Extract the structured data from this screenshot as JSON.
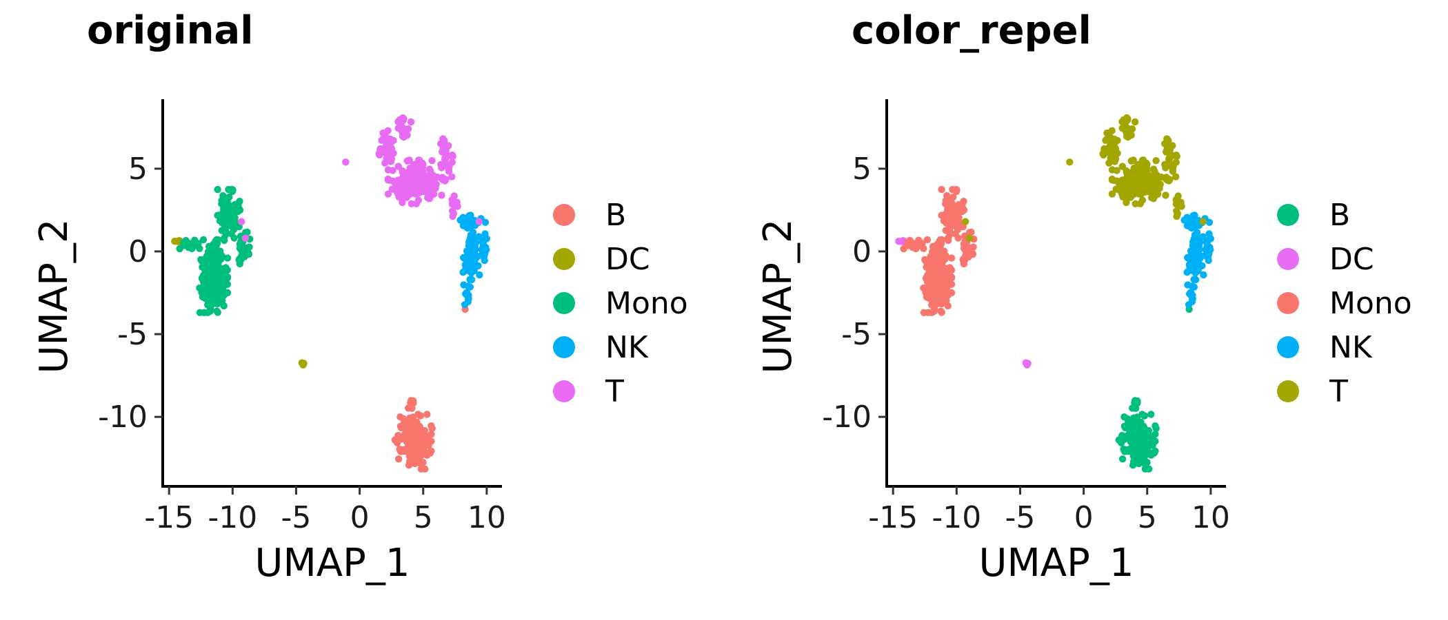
{
  "chart_data": [
    {
      "type": "scatter",
      "title": "original",
      "xlabel": "UMAP_1",
      "ylabel": "UMAP_2",
      "xlim": [
        -15.5,
        11.2
      ],
      "ylim": [
        -14.2,
        9.2
      ],
      "xticks": [
        -15,
        -10,
        -5,
        0,
        5,
        10
      ],
      "xtick_labels": [
        "-15",
        "-10",
        "-5",
        "0",
        "5",
        "10"
      ],
      "yticks": [
        -10,
        -5,
        0,
        5
      ],
      "ytick_labels": [
        "-10",
        "-5",
        "0",
        "5"
      ],
      "grid": false,
      "legend_position": "right",
      "legend": [
        {
          "label": "B",
          "color": "#F8766D"
        },
        {
          "label": "DC",
          "color": "#A3A500"
        },
        {
          "label": "Mono",
          "color": "#00BF7D"
        },
        {
          "label": "NK",
          "color": "#00B0F6"
        },
        {
          "label": "T",
          "color": "#E76BF3"
        }
      ],
      "series": [
        {
          "name": "B",
          "color": "#F8766D",
          "clusters": [
            {
              "cx": 4.2,
              "cy": -11.5,
              "rx": 1.3,
              "ry": 1.5,
              "n": 140
            },
            {
              "cx": 4.0,
              "cy": -9.5,
              "rx": 0.4,
              "ry": 0.9,
              "n": 12
            }
          ],
          "points": [
            [
              5.7,
              -10.7
            ],
            [
              8.3,
              -3.5
            ]
          ]
        },
        {
          "name": "DC",
          "color": "#A3A500",
          "clusters": [
            {
              "cx": -4.5,
              "cy": -6.8,
              "rx": 0.12,
              "ry": 0.12,
              "n": 4
            },
            {
              "cx": -14.3,
              "cy": 0.6,
              "rx": 0.3,
              "ry": 0.1,
              "n": 5
            }
          ],
          "points": []
        },
        {
          "name": "Mono",
          "color": "#00BF7D",
          "clusters": [
            {
              "cx": -11.5,
              "cy": -1.5,
              "rx": 1.0,
              "ry": 2.0,
              "n": 200
            },
            {
              "cx": -10.3,
              "cy": 2.2,
              "rx": 0.8,
              "ry": 1.4,
              "n": 70
            },
            {
              "cx": -9.2,
              "cy": 0.3,
              "rx": 0.5,
              "ry": 1.0,
              "n": 25
            },
            {
              "cx": -13.2,
              "cy": 0.4,
              "rx": 1.0,
              "ry": 0.25,
              "n": 20
            }
          ],
          "points": [
            [
              3.9,
              5.5
            ],
            [
              -9.5,
              -0.5
            ]
          ]
        },
        {
          "name": "NK",
          "color": "#00B0F6",
          "clusters": [
            {
              "cx": 8.8,
              "cy": -0.5,
              "rx": 0.6,
              "ry": 1.5,
              "n": 70
            },
            {
              "cx": 8.9,
              "cy": 1.8,
              "rx": 0.9,
              "ry": 0.35,
              "n": 25
            },
            {
              "cx": 9.8,
              "cy": 0.5,
              "rx": 0.3,
              "ry": 1.0,
              "n": 20
            },
            {
              "cx": 8.4,
              "cy": -2.6,
              "rx": 0.25,
              "ry": 0.6,
              "n": 10
            }
          ],
          "points": []
        },
        {
          "name": "T",
          "color": "#E76BF3",
          "clusters": [
            {
              "cx": 4.0,
              "cy": 4.2,
              "rx": 1.6,
              "ry": 1.2,
              "n": 160
            },
            {
              "cx": 2.0,
              "cy": 6.2,
              "rx": 0.6,
              "ry": 1.0,
              "n": 40
            },
            {
              "cx": 3.5,
              "cy": 7.5,
              "rx": 0.5,
              "ry": 0.8,
              "n": 25
            },
            {
              "cx": 6.8,
              "cy": 5.5,
              "rx": 0.5,
              "ry": 1.3,
              "n": 35
            },
            {
              "cx": 5.5,
              "cy": 4.0,
              "rx": 1.0,
              "ry": 0.8,
              "n": 40
            },
            {
              "cx": 7.5,
              "cy": 2.8,
              "rx": 0.4,
              "ry": 0.7,
              "n": 12
            }
          ],
          "points": [
            [
              -1.1,
              5.4
            ],
            [
              -9.0,
              0.8
            ],
            [
              -9.3,
              1.8
            ],
            [
              9.4,
              1.8
            ]
          ]
        }
      ]
    },
    {
      "type": "scatter",
      "title": "color_repel",
      "xlabel": "UMAP_1",
      "ylabel": "UMAP_2",
      "xlim": [
        -15.5,
        11.2
      ],
      "ylim": [
        -14.2,
        9.2
      ],
      "xticks": [
        -15,
        -10,
        -5,
        0,
        5,
        10
      ],
      "xtick_labels": [
        "-15",
        "-10",
        "-5",
        "0",
        "5",
        "10"
      ],
      "yticks": [
        -10,
        -5,
        0,
        5
      ],
      "ytick_labels": [
        "-10",
        "-5",
        "0",
        "5"
      ],
      "grid": false,
      "legend_position": "right",
      "legend": [
        {
          "label": "B",
          "color": "#00BF7D"
        },
        {
          "label": "DC",
          "color": "#E76BF3"
        },
        {
          "label": "Mono",
          "color": "#F8766D"
        },
        {
          "label": "NK",
          "color": "#00B0F6"
        },
        {
          "label": "T",
          "color": "#A3A500"
        }
      ],
      "series": [
        {
          "name": "B",
          "color": "#00BF7D",
          "clusters": [
            {
              "cx": 4.2,
              "cy": -11.5,
              "rx": 1.3,
              "ry": 1.5,
              "n": 140
            },
            {
              "cx": 4.0,
              "cy": -9.5,
              "rx": 0.4,
              "ry": 0.9,
              "n": 12
            }
          ],
          "points": [
            [
              5.7,
              -10.7
            ],
            [
              8.3,
              -3.5
            ]
          ]
        },
        {
          "name": "DC",
          "color": "#E76BF3",
          "clusters": [
            {
              "cx": -4.5,
              "cy": -6.8,
              "rx": 0.12,
              "ry": 0.12,
              "n": 4
            },
            {
              "cx": -14.3,
              "cy": 0.6,
              "rx": 0.3,
              "ry": 0.1,
              "n": 5
            }
          ],
          "points": []
        },
        {
          "name": "Mono",
          "color": "#F8766D",
          "clusters": [
            {
              "cx": -11.5,
              "cy": -1.5,
              "rx": 1.0,
              "ry": 2.0,
              "n": 200
            },
            {
              "cx": -10.3,
              "cy": 2.2,
              "rx": 0.8,
              "ry": 1.4,
              "n": 70
            },
            {
              "cx": -9.2,
              "cy": 0.3,
              "rx": 0.5,
              "ry": 1.0,
              "n": 25
            },
            {
              "cx": -13.2,
              "cy": 0.4,
              "rx": 1.0,
              "ry": 0.25,
              "n": 20
            }
          ],
          "points": [
            [
              3.9,
              5.5
            ],
            [
              -9.5,
              -0.5
            ]
          ]
        },
        {
          "name": "NK",
          "color": "#00B0F6",
          "clusters": [
            {
              "cx": 8.8,
              "cy": -0.5,
              "rx": 0.6,
              "ry": 1.5,
              "n": 70
            },
            {
              "cx": 8.9,
              "cy": 1.8,
              "rx": 0.9,
              "ry": 0.35,
              "n": 25
            },
            {
              "cx": 9.8,
              "cy": 0.5,
              "rx": 0.3,
              "ry": 1.0,
              "n": 20
            },
            {
              "cx": 8.4,
              "cy": -2.6,
              "rx": 0.25,
              "ry": 0.6,
              "n": 10
            }
          ],
          "points": []
        },
        {
          "name": "T",
          "color": "#A3A500",
          "clusters": [
            {
              "cx": 4.0,
              "cy": 4.2,
              "rx": 1.6,
              "ry": 1.2,
              "n": 160
            },
            {
              "cx": 2.0,
              "cy": 6.2,
              "rx": 0.6,
              "ry": 1.0,
              "n": 40
            },
            {
              "cx": 3.5,
              "cy": 7.5,
              "rx": 0.5,
              "ry": 0.8,
              "n": 25
            },
            {
              "cx": 6.8,
              "cy": 5.5,
              "rx": 0.5,
              "ry": 1.3,
              "n": 35
            },
            {
              "cx": 5.5,
              "cy": 4.0,
              "rx": 1.0,
              "ry": 0.8,
              "n": 40
            },
            {
              "cx": 7.5,
              "cy": 2.8,
              "rx": 0.4,
              "ry": 0.7,
              "n": 12
            }
          ],
          "points": [
            [
              -1.1,
              5.4
            ],
            [
              -9.0,
              0.8
            ],
            [
              -9.3,
              1.8
            ],
            [
              9.4,
              1.8
            ]
          ]
        }
      ]
    }
  ]
}
